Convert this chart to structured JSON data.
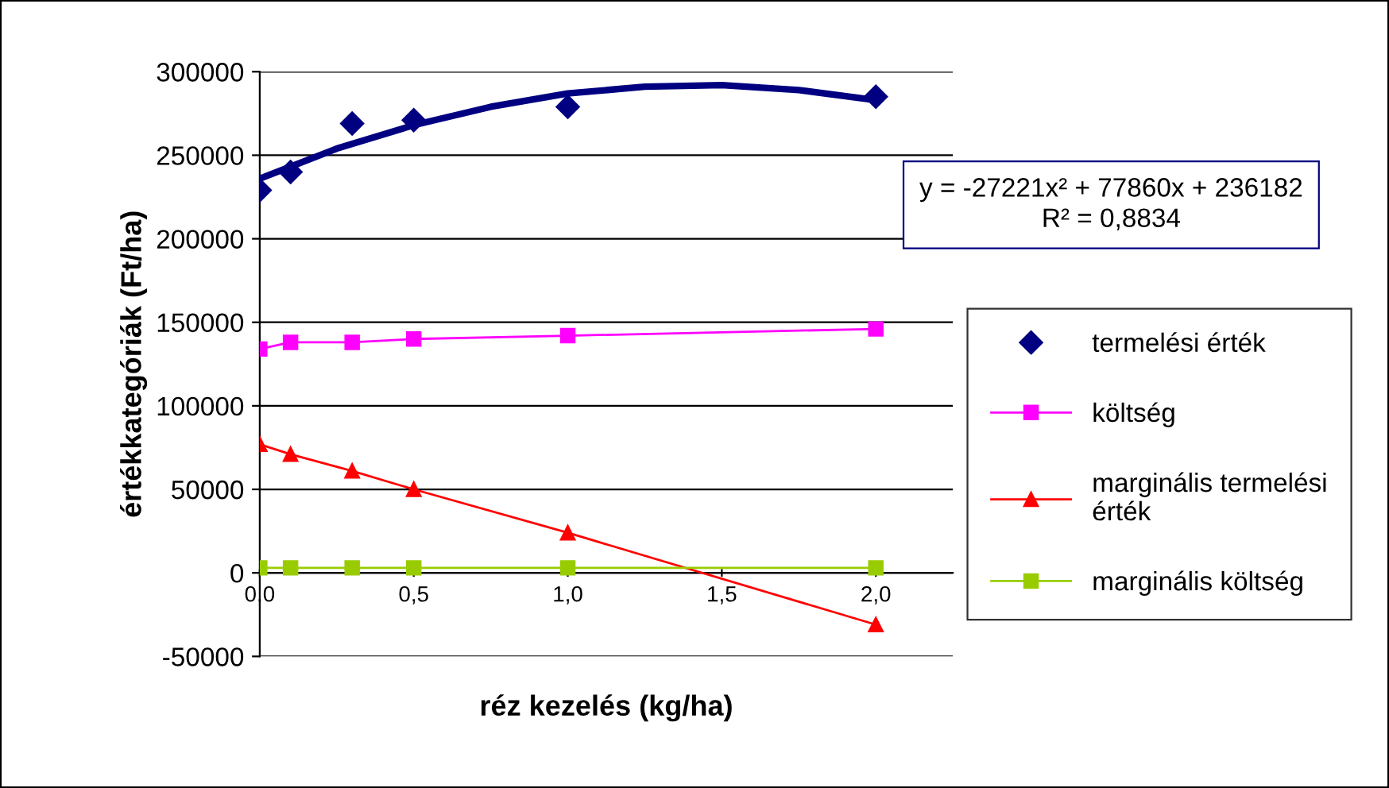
{
  "chart_data": {
    "type": "line",
    "xlabel": "réz kezelés (kg/ha)",
    "ylabel": "értékkategóriák (Ft/ha)",
    "x": [
      0,
      0.1,
      0.3,
      0.5,
      1.0,
      2.0
    ],
    "series": [
      {
        "name": "termelési érték",
        "type": "scatter",
        "color": "#000080",
        "marker": "diamond",
        "values": [
          229000,
          240000,
          269000,
          271000,
          279000,
          285000
        ]
      },
      {
        "name": "költség",
        "color": "#ff00ff",
        "marker": "square",
        "values": [
          134000,
          138000,
          138000,
          140000,
          142000,
          146000
        ]
      },
      {
        "name": "marginális termelési érték",
        "color": "#ff0000",
        "marker": "triangle",
        "values": [
          77000,
          71000,
          61000,
          50000,
          24000,
          -31000
        ]
      },
      {
        "name": "marginális költség",
        "color": "#99cc00",
        "marker": "square",
        "values": [
          3000,
          3000,
          3000,
          3000,
          3000,
          3000
        ]
      },
      {
        "color": "#000080",
        "marker": "none",
        "x": [
          0,
          0.25,
          0.5,
          0.75,
          1.0,
          1.25,
          1.5,
          1.75,
          2.0
        ],
        "values": [
          236000,
          254000,
          268000,
          279000,
          287000,
          291000,
          292000,
          289000,
          283000
        ]
      }
    ],
    "xlim": [
      0,
      2.25
    ],
    "ylim": [
      -50000,
      300000
    ],
    "xticks": [
      {
        "value": 0,
        "label": "0,0"
      },
      {
        "value": 0.5,
        "label": "0,5"
      },
      {
        "value": 1.0,
        "label": "1,0"
      },
      {
        "value": 1.5,
        "label": "1,5"
      },
      {
        "value": 2.0,
        "label": "2,0"
      }
    ],
    "yticks": [
      -50000,
      0,
      50000,
      100000,
      150000,
      200000,
      250000,
      300000
    ],
    "grid": "y",
    "legend": "right",
    "annotations": [
      "y = -27221x² + 77860x + 236182\nR² = 0,8834"
    ]
  }
}
